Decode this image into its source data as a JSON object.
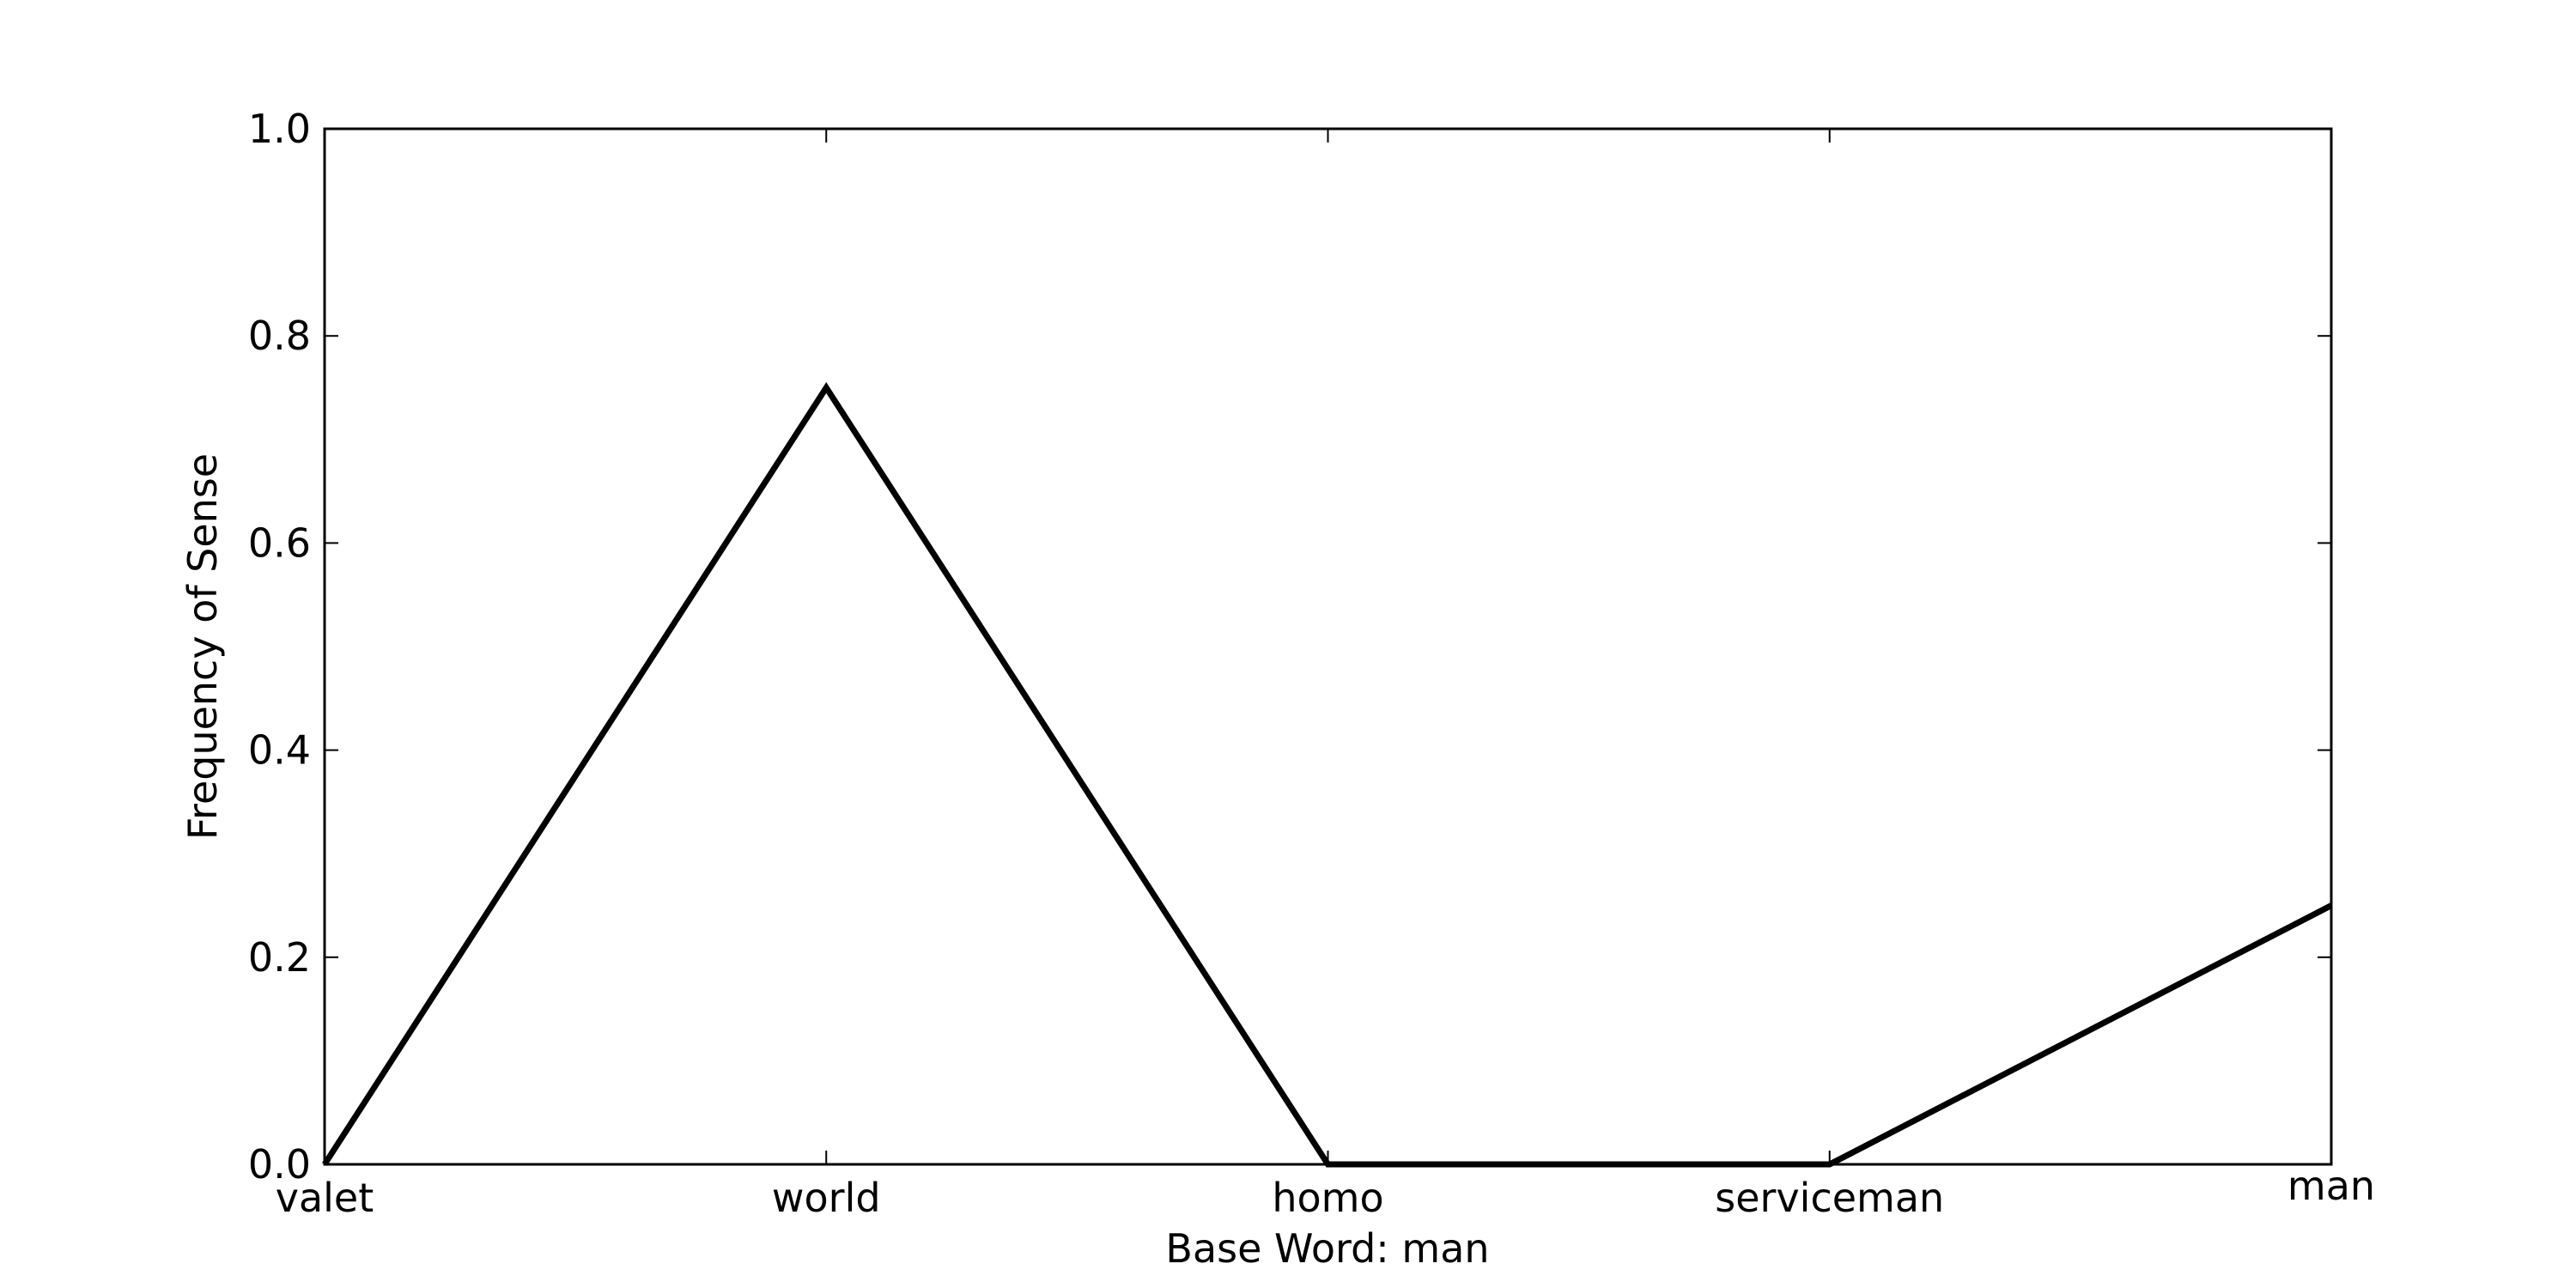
{
  "chart_data": {
    "type": "line",
    "categories": [
      "valet",
      "world",
      "homo",
      "serviceman",
      "man"
    ],
    "series": [
      {
        "values": [
          0.0,
          0.75,
          0.0,
          0.0,
          0.25
        ]
      }
    ],
    "title": "",
    "xlabel": "Base Word: man",
    "ylabel": "Frequency of Sense",
    "ylim": [
      0,
      1.0
    ],
    "yticks": [
      "0.0",
      "0.2",
      "0.4",
      "0.6",
      "0.8",
      "1.0"
    ],
    "line_color": "#000000",
    "grid": false
  }
}
